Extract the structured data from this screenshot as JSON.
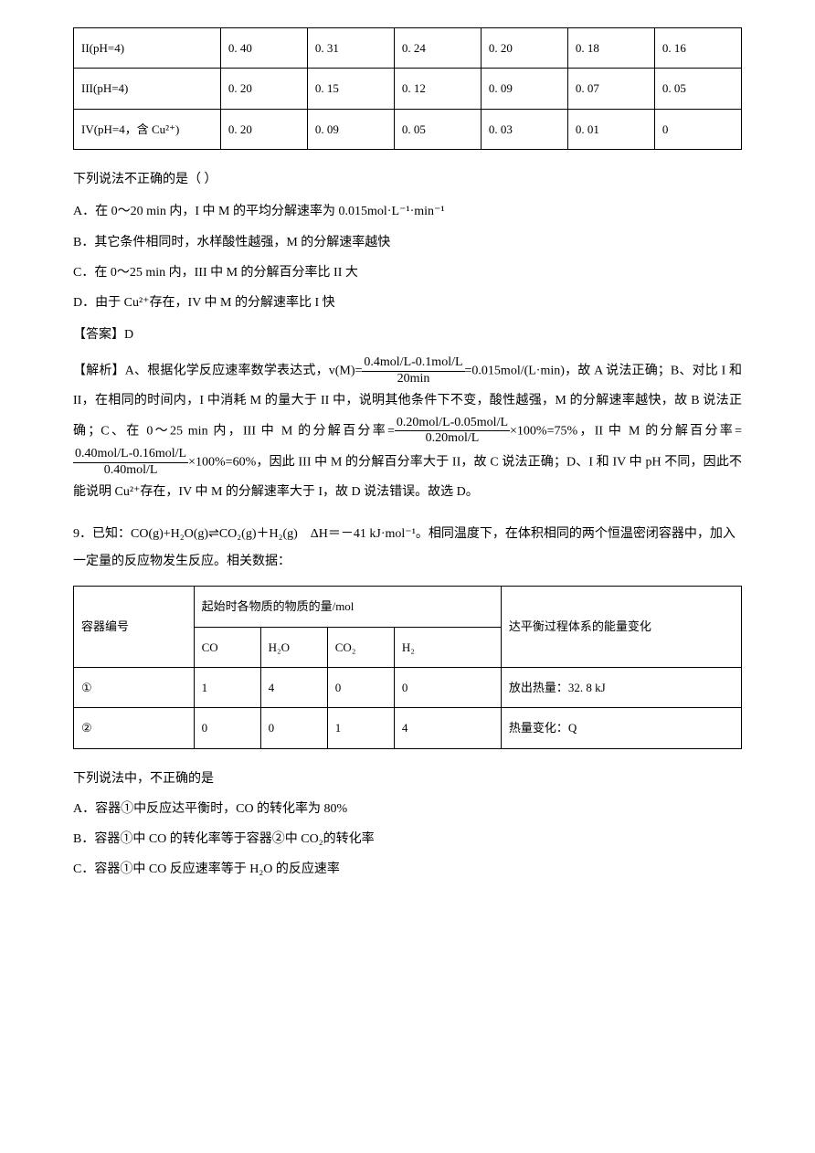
{
  "table1": {
    "rows": [
      [
        "II(pH=4)",
        "0. 40",
        "0. 31",
        "0. 24",
        "0. 20",
        "0. 18",
        "0. 16"
      ],
      [
        "III(pH=4)",
        "0. 20",
        "0. 15",
        "0. 12",
        "0. 09",
        "0. 07",
        "0. 05"
      ],
      [
        "IV(pH=4，含 Cu²⁺)",
        "0. 20",
        "0. 09",
        "0. 05",
        "0. 03",
        "0. 01",
        "0"
      ]
    ],
    "border_color": "#000000",
    "font_size": 13
  },
  "question_intro": "下列说法不正确的是（ ）",
  "options": {
    "A": "A．在 0～20 min 内，I 中 M 的平均分解速率为 0.015mol·L⁻¹·min⁻¹",
    "B": "B．其它条件相同时，水样酸性越强，M 的分解速率越快",
    "C": "C．在 0～25 min 内，III 中 M 的分解百分率比 II 大",
    "D": "D．由于 Cu²⁺存在，IV 中 M 的分解速率比 I 快"
  },
  "answer_label": "【答案】D",
  "analysis": {
    "prefix": "【解析】A、根据化学反应速率数学表达式，v(M)=",
    "frac1_num": "0.4mol/L-0.1mol/L",
    "frac1_den": "20min",
    "part2": "=0.015mol/(L·min)，故 A 说法正确；B、对比 I 和 II，在相同的时间内，I 中消耗 M 的量大于 II 中，说明其他条件下不变，酸性越强，M 的分解速率越快，故 B 说法正确；C、在 0～25 min 内，III 中 M 的分解百分率=",
    "frac2_num": "0.20mol/L-0.05mol/L",
    "frac2_den": "0.20mol/L",
    "part3": "×100%=75%，II 中 M 的分解百分率=",
    "frac3_num": "0.40mol/L-0.16mol/L",
    "frac3_den": "0.40mol/L",
    "part4": "×100%=60%，因此 III 中 M 的分解百分率大于 II，故 C 说法正确；D、I 和 IV 中 pH 不同，因此不能说明 Cu²⁺存在，IV 中 M 的分解速率大于 I，故 D 说法错误。故选 D。"
  },
  "question9": {
    "text1": "9．已知：CO(g)+H₂O(g)",
    "arrow": "⇌",
    "text2": "CO₂(g)＋H₂(g)　ΔH＝－41 kJ·mol⁻¹。相同温度下，在体积相同的两个恒温密闭容器中，加入一定量的反应物发生反应。相关数据："
  },
  "table2": {
    "headers": {
      "col1": "容器编号",
      "col2_span": "起始时各物质的物质的量/mol",
      "col6": "达平衡过程体系的能量变化",
      "sub_col2": "CO",
      "sub_col3": "H₂O",
      "sub_col4": "CO₂",
      "sub_col5": "H₂"
    },
    "rows": [
      [
        "①",
        "1",
        "4",
        "0",
        "0",
        "放出热量：32. 8 kJ"
      ],
      [
        "②",
        "0",
        "0",
        "1",
        "4",
        "热量变化：Q"
      ]
    ],
    "border_color": "#000000",
    "font_size": 13
  },
  "question9_intro": "下列说法中，不正确的是",
  "q9_options": {
    "A": "A．容器①中反应达平衡时，CO 的转化率为 80%",
    "B": "B．容器①中 CO 的转化率等于容器②中 CO₂的转化率",
    "C": "C．容器①中 CO 反应速率等于 H₂O 的反应速率"
  }
}
